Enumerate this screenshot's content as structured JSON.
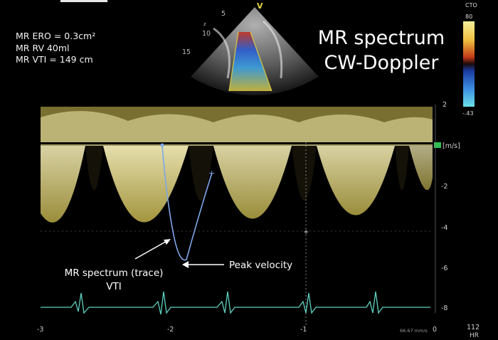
{
  "measurements": {
    "ero": "MR ERO = 0.3cm²",
    "rv": "MR RV 40ml",
    "vti": "MR VTI = 149 cm"
  },
  "title": {
    "line1": "MR spectrum",
    "line2": "CW-Doppler"
  },
  "echo_image": {
    "depth_markers": [
      "5",
      "10",
      "15"
    ],
    "probe_marker": "V",
    "marker_z": "z"
  },
  "color_bar": {
    "label": "CTO",
    "top_value": "80",
    "bottom_value": "-.43"
  },
  "velocity_axis": {
    "unit": "[m/s]",
    "ticks": [
      "2",
      "-2",
      "-4",
      "-6",
      "-8"
    ]
  },
  "time_axis": {
    "ticks": [
      "-3",
      "-2",
      "-1",
      "0"
    ],
    "sweep": "66.67 mm/s"
  },
  "heart_rate": {
    "value": "112",
    "label": "HR"
  },
  "annotations": {
    "trace_label_line1": "MR spectrum (trace)",
    "trace_label_line2": "VTI",
    "peak_label": "Peak velocity"
  },
  "colors": {
    "doppler": "#e8dd7a",
    "ecg": "#5fd0c0",
    "trace": "#7fa6e8",
    "baseline_marker": "#2fbf4f"
  }
}
